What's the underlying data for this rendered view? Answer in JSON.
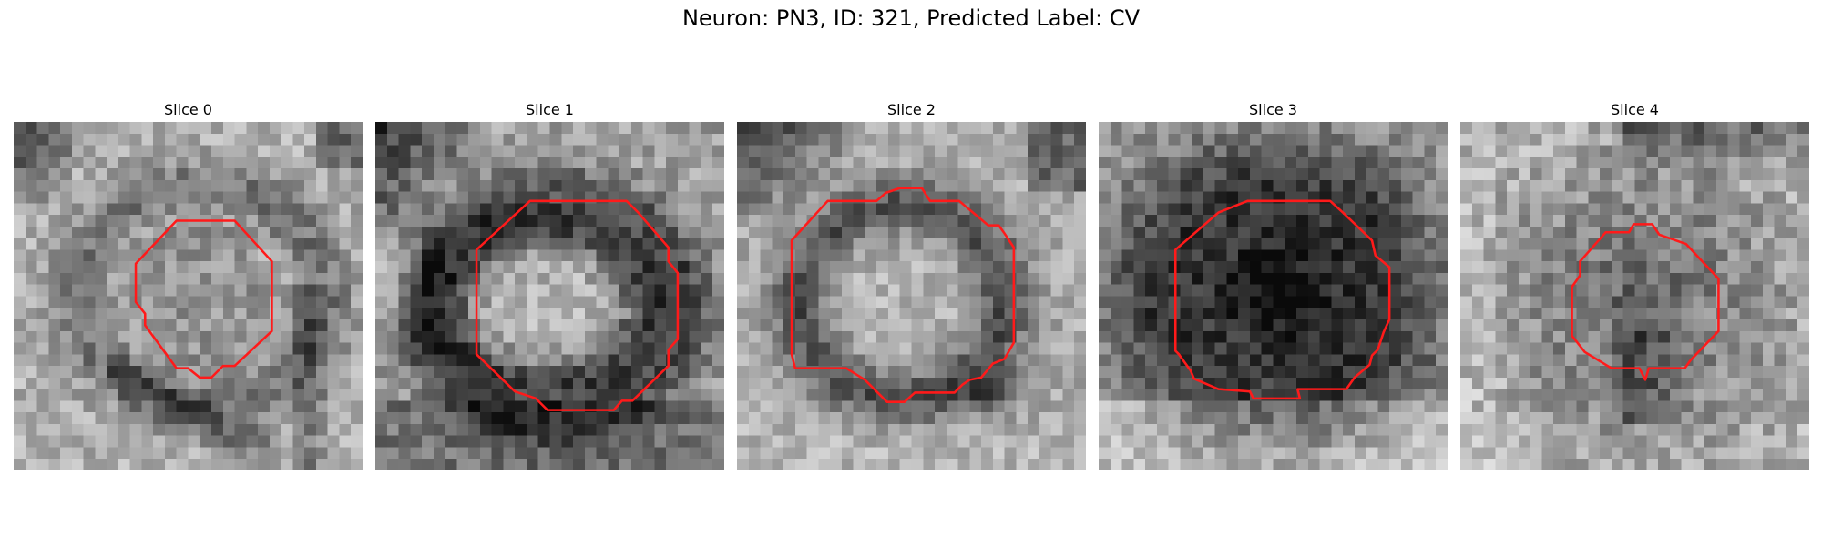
{
  "figure": {
    "title": "Neuron: PN3, ID: 321, Predicted Label: CV"
  },
  "colors": {
    "contour": "#ff1a1a",
    "background": "#ffffff"
  },
  "panels": [
    {
      "label": "Slice 0"
    },
    {
      "label": "Slice 1"
    },
    {
      "label": "Slice 2"
    },
    {
      "label": "Slice 3"
    },
    {
      "label": "Slice 4"
    }
  ]
}
